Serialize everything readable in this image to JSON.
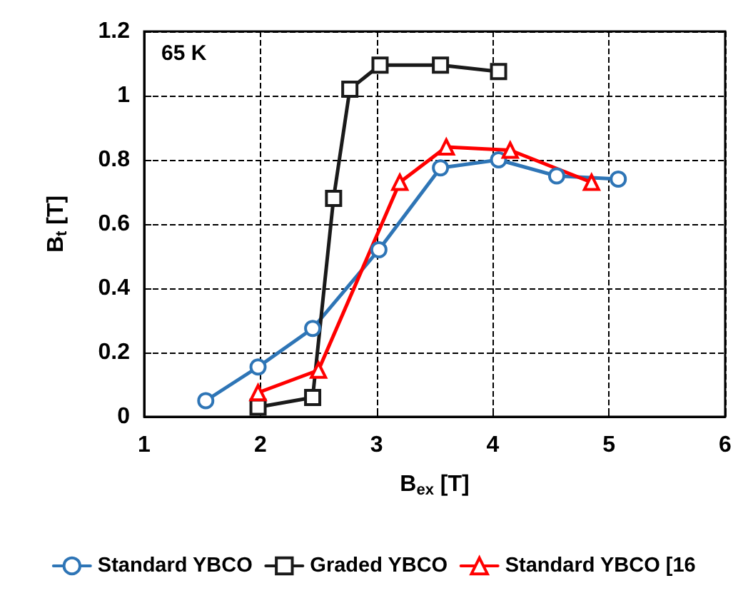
{
  "chart_data": {
    "type": "line",
    "xlabel": "B$_{ex}$ [T]",
    "ylabel": "B$_{t}$ [T]",
    "annotations": [
      "65 K"
    ],
    "xlim": [
      1,
      6
    ],
    "xticks": [
      1,
      2,
      3,
      4,
      5,
      6
    ],
    "ylim": [
      0,
      1.2
    ],
    "yticks": [
      0,
      0.2,
      0.4,
      0.6,
      0.8,
      1,
      1.2
    ],
    "grid": true,
    "legend": "bottom",
    "line_style": "solid",
    "series": [
      {
        "name": "Standard YBCO",
        "color": "#2e75b6",
        "marker": "circle",
        "x": [
          1.53,
          1.98,
          2.45,
          3.02,
          3.55,
          4.05,
          4.55,
          5.08
        ],
        "values": [
          0.05,
          0.155,
          0.275,
          0.52,
          0.775,
          0.8,
          0.75,
          0.74
        ]
      },
      {
        "name": "Graded YBCO",
        "color": "#1a1a1a",
        "marker": "square",
        "x": [
          1.98,
          2.45,
          2.63,
          2.77,
          3.03,
          3.55,
          4.05
        ],
        "values": [
          0.03,
          0.06,
          0.68,
          1.02,
          1.095,
          1.095,
          1.075
        ]
      },
      {
        "name": "Standard YBCO [16",
        "color": "#ff0000",
        "marker": "triangle",
        "x": [
          1.98,
          2.5,
          3.2,
          3.6,
          4.15,
          4.85
        ],
        "values": [
          0.075,
          0.145,
          0.73,
          0.84,
          0.83,
          0.73
        ]
      }
    ]
  }
}
